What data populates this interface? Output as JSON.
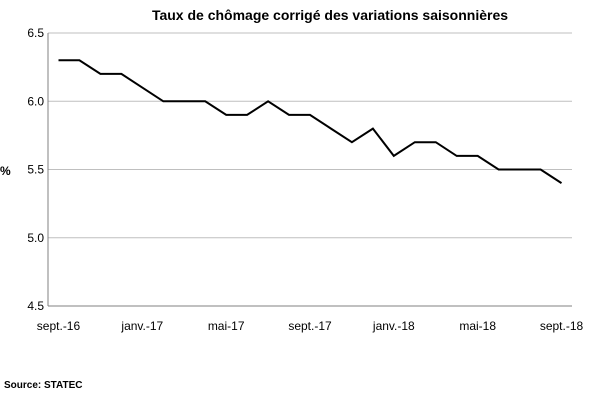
{
  "chart_data": {
    "type": "line",
    "title": "Taux de chômage corrigé des variations saisonnières",
    "ylabel": "%",
    "xlabel": "",
    "ylim": [
      4.5,
      6.5
    ],
    "yticks": [
      "4.5",
      "5.0",
      "5.5",
      "6.0",
      "6.5"
    ],
    "x_tick_labels": [
      "sept.-16",
      "janv.-17",
      "mai-17",
      "sept.-17",
      "janv.-18",
      "mai-18",
      "sept.-18"
    ],
    "x": [
      "2016-09",
      "2016-10",
      "2016-11",
      "2016-12",
      "2017-01",
      "2017-02",
      "2017-03",
      "2017-04",
      "2017-05",
      "2017-06",
      "2017-07",
      "2017-08",
      "2017-09",
      "2017-10",
      "2017-11",
      "2017-12",
      "2018-01",
      "2018-02",
      "2018-03",
      "2018-04",
      "2018-05",
      "2018-06",
      "2018-07",
      "2018-08",
      "2018-09"
    ],
    "series": [
      {
        "values": [
          6.3,
          6.3,
          6.2,
          6.2,
          6.1,
          6.0,
          6.0,
          6.0,
          5.9,
          5.9,
          6.0,
          5.9,
          5.9,
          5.8,
          5.7,
          5.8,
          5.6,
          5.7,
          5.7,
          5.6,
          5.6,
          5.5,
          5.5,
          5.5,
          5.4
        ]
      }
    ],
    "line_color": "#000000",
    "grid": "horizontal",
    "legend": "none"
  },
  "source": "Source: STATEC"
}
